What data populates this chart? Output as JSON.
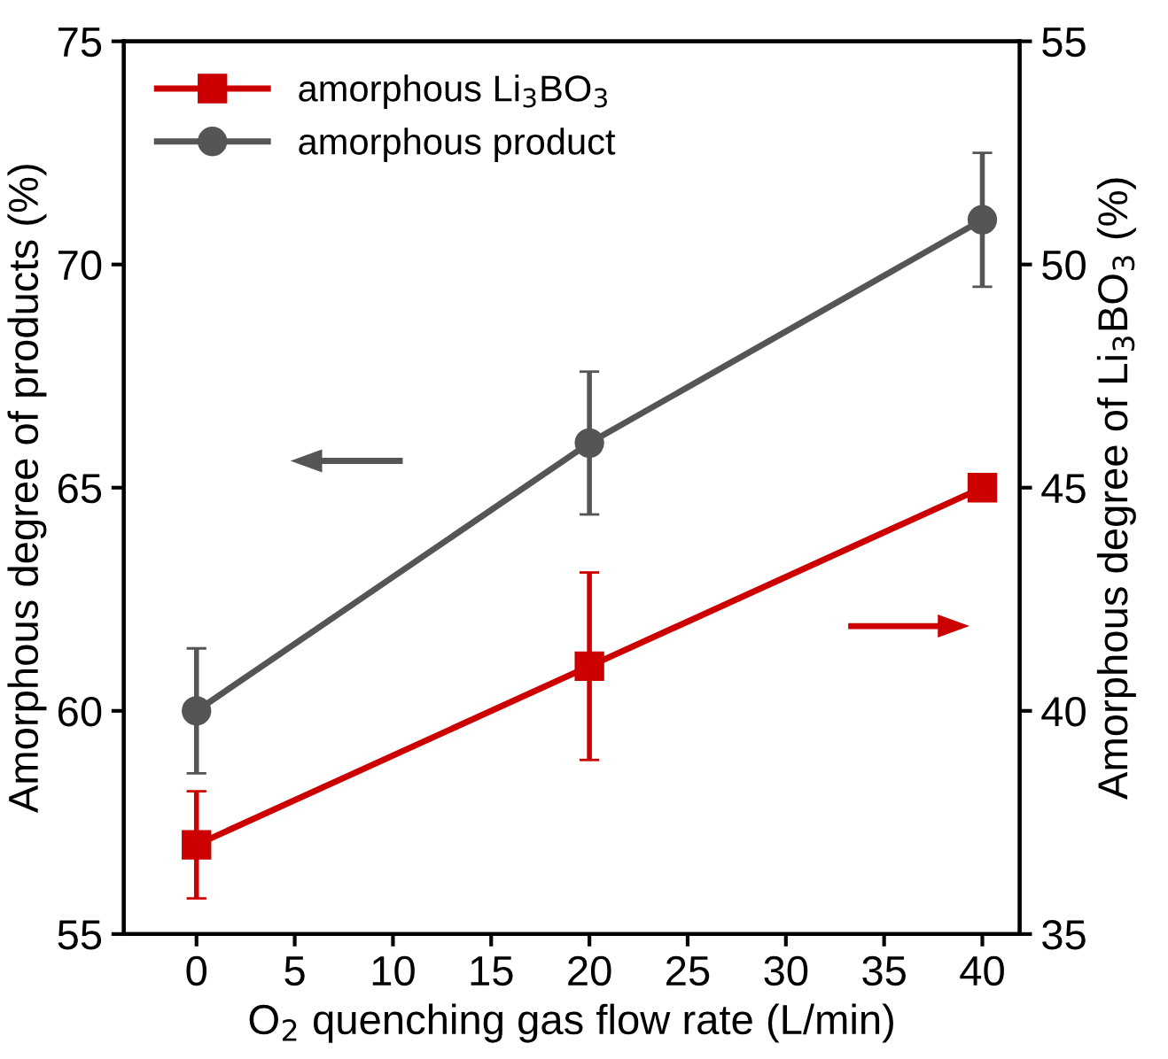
{
  "chart_data": {
    "type": "line",
    "xlabel": "O$_{2}$ quenching gas flow rate (L/min)",
    "ylabel": "Amorphous degree of products (%)",
    "y2label": "Amorphous degree of Li$_{3}$BO$_{3}$ (%)",
    "x": [
      0,
      20,
      40
    ],
    "series": [
      {
        "name": "amorphous Li$_{3}$BO$_{3}$",
        "color": "#cc0000",
        "values": [
          37.0,
          41.0,
          45.0
        ],
        "errors": [
          1.2,
          2.1,
          0.2
        ],
        "axis": "y2",
        "marker": "square"
      },
      {
        "name": "amorphous product",
        "color": "#555555",
        "values": [
          60.0,
          66.0,
          71.0
        ],
        "errors": [
          1.4,
          1.6,
          1.5
        ],
        "axis": "y",
        "marker": "circle"
      }
    ],
    "xlim": [
      -3.7,
      41.9
    ],
    "xticks": [
      0,
      5,
      10,
      15,
      20,
      25,
      30,
      35,
      40
    ],
    "ylim": [
      55,
      75
    ],
    "yticks": [
      55,
      60,
      65,
      70,
      75
    ],
    "y2lim": [
      35,
      55
    ],
    "y2ticks": [
      35,
      40,
      45,
      50,
      55
    ],
    "legend": "top left",
    "grid": false,
    "line_style": "solid"
  }
}
